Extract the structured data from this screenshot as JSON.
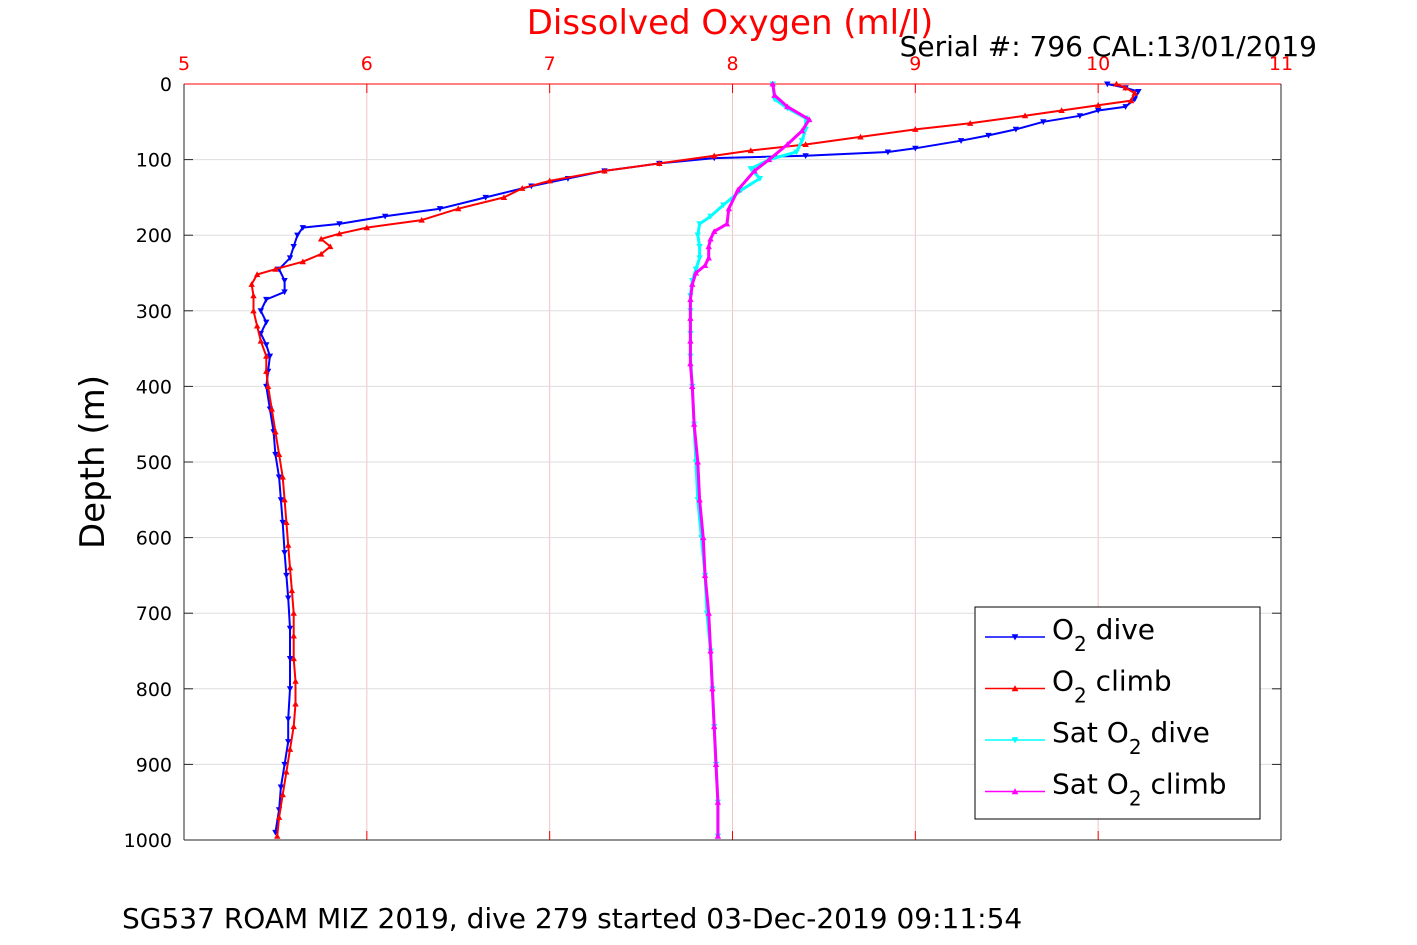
{
  "chart_data": {
    "type": "scatter",
    "title": "Dissolved Oxygen (ml/l)",
    "subtitle": "Serial #: 796  CAL:13/01/2019",
    "ylabel": "Depth (m)",
    "xlabel": "",
    "xlim": [
      5,
      11
    ],
    "ylim": [
      0,
      1000
    ],
    "y_reversed": true,
    "x_axis_position": "top",
    "x_ticks": [
      "5",
      "6",
      "7",
      "8",
      "9",
      "10",
      "11"
    ],
    "y_ticks": [
      "0",
      "100",
      "200",
      "300",
      "400",
      "500",
      "600",
      "700",
      "800",
      "900",
      "1000"
    ],
    "grid": true,
    "legend_position": "bottom-right",
    "footer": "SG537 ROAM MIZ 2019, dive 279 started 03-Dec-2019 09:11:54",
    "colors": {
      "o2_dive": "#0000ff",
      "o2_climb": "#ff0000",
      "sat_dive": "#00ffff",
      "sat_climb": "#ff00ff",
      "grid": "#dddddd",
      "x_axis": "#ff0000"
    },
    "series": [
      {
        "name": "O2 dive",
        "legend": {
          "base": "O",
          "sub": "2",
          "suffix": " dive",
          "prefix": ""
        },
        "color": "#0000ff",
        "marker": "triangle-down",
        "points": [
          [
            10.05,
            0
          ],
          [
            10.15,
            5
          ],
          [
            10.22,
            10
          ],
          [
            10.2,
            20
          ],
          [
            10.15,
            30
          ],
          [
            10.0,
            35
          ],
          [
            9.9,
            42
          ],
          [
            9.7,
            50
          ],
          [
            9.55,
            60
          ],
          [
            9.4,
            68
          ],
          [
            9.25,
            75
          ],
          [
            9.0,
            85
          ],
          [
            8.85,
            90
          ],
          [
            8.4,
            95
          ],
          [
            7.9,
            98
          ],
          [
            7.6,
            105
          ],
          [
            7.3,
            115
          ],
          [
            7.1,
            125
          ],
          [
            6.9,
            135
          ],
          [
            6.65,
            150
          ],
          [
            6.4,
            165
          ],
          [
            6.1,
            175
          ],
          [
            5.85,
            185
          ],
          [
            5.65,
            190
          ],
          [
            5.62,
            200
          ],
          [
            5.6,
            215
          ],
          [
            5.58,
            230
          ],
          [
            5.52,
            245
          ],
          [
            5.55,
            260
          ],
          [
            5.55,
            275
          ],
          [
            5.45,
            285
          ],
          [
            5.42,
            300
          ],
          [
            5.45,
            315
          ],
          [
            5.42,
            330
          ],
          [
            5.45,
            345
          ],
          [
            5.47,
            360
          ],
          [
            5.46,
            380
          ],
          [
            5.45,
            400
          ],
          [
            5.47,
            430
          ],
          [
            5.49,
            460
          ],
          [
            5.5,
            490
          ],
          [
            5.52,
            520
          ],
          [
            5.53,
            550
          ],
          [
            5.54,
            580
          ],
          [
            5.55,
            620
          ],
          [
            5.56,
            650
          ],
          [
            5.57,
            680
          ],
          [
            5.58,
            720
          ],
          [
            5.58,
            760
          ],
          [
            5.58,
            800
          ],
          [
            5.57,
            840
          ],
          [
            5.57,
            870
          ],
          [
            5.55,
            900
          ],
          [
            5.53,
            930
          ],
          [
            5.52,
            960
          ],
          [
            5.5,
            990
          ]
        ]
      },
      {
        "name": "O2 climb",
        "legend": {
          "base": "O",
          "sub": "2",
          "suffix": " climb",
          "prefix": ""
        },
        "color": "#ff0000",
        "marker": "triangle-up",
        "points": [
          [
            10.1,
            0
          ],
          [
            10.15,
            5
          ],
          [
            10.2,
            12
          ],
          [
            10.18,
            22
          ],
          [
            10.0,
            28
          ],
          [
            9.8,
            35
          ],
          [
            9.6,
            42
          ],
          [
            9.3,
            52
          ],
          [
            9.0,
            60
          ],
          [
            8.7,
            70
          ],
          [
            8.4,
            80
          ],
          [
            8.1,
            88
          ],
          [
            7.9,
            95
          ],
          [
            7.6,
            105
          ],
          [
            7.3,
            115
          ],
          [
            7.0,
            128
          ],
          [
            6.85,
            138
          ],
          [
            6.75,
            150
          ],
          [
            6.5,
            165
          ],
          [
            6.3,
            180
          ],
          [
            6.0,
            190
          ],
          [
            5.85,
            198
          ],
          [
            5.75,
            205
          ],
          [
            5.8,
            215
          ],
          [
            5.75,
            225
          ],
          [
            5.65,
            235
          ],
          [
            5.5,
            245
          ],
          [
            5.4,
            252
          ],
          [
            5.37,
            265
          ],
          [
            5.38,
            280
          ],
          [
            5.38,
            300
          ],
          [
            5.4,
            320
          ],
          [
            5.42,
            340
          ],
          [
            5.45,
            360
          ],
          [
            5.45,
            380
          ],
          [
            5.46,
            400
          ],
          [
            5.48,
            430
          ],
          [
            5.5,
            460
          ],
          [
            5.52,
            490
          ],
          [
            5.54,
            520
          ],
          [
            5.55,
            550
          ],
          [
            5.56,
            580
          ],
          [
            5.57,
            610
          ],
          [
            5.58,
            640
          ],
          [
            5.59,
            670
          ],
          [
            5.6,
            700
          ],
          [
            5.6,
            730
          ],
          [
            5.6,
            760
          ],
          [
            5.61,
            790
          ],
          [
            5.61,
            820
          ],
          [
            5.6,
            850
          ],
          [
            5.58,
            880
          ],
          [
            5.56,
            910
          ],
          [
            5.54,
            940
          ],
          [
            5.52,
            970
          ],
          [
            5.51,
            995
          ]
        ]
      },
      {
        "name": "Sat O2 dive",
        "legend": {
          "base": "O",
          "sub": "2",
          "suffix": " dive",
          "prefix": "Sat "
        },
        "color": "#00ffff",
        "marker": "triangle-down",
        "points": [
          [
            8.22,
            0
          ],
          [
            8.23,
            20
          ],
          [
            8.3,
            32
          ],
          [
            8.4,
            45
          ],
          [
            8.4,
            60
          ],
          [
            8.38,
            75
          ],
          [
            8.35,
            90
          ],
          [
            8.2,
            100
          ],
          [
            8.1,
            112
          ],
          [
            8.15,
            125
          ],
          [
            8.05,
            140
          ],
          [
            7.95,
            160
          ],
          [
            7.88,
            175
          ],
          [
            7.82,
            185
          ],
          [
            7.81,
            200
          ],
          [
            7.82,
            215
          ],
          [
            7.82,
            230
          ],
          [
            7.8,
            245
          ],
          [
            7.78,
            260
          ],
          [
            7.77,
            280
          ],
          [
            7.77,
            300
          ],
          [
            7.77,
            330
          ],
          [
            7.77,
            360
          ],
          [
            7.78,
            400
          ],
          [
            7.79,
            450
          ],
          [
            7.8,
            500
          ],
          [
            7.81,
            550
          ],
          [
            7.83,
            600
          ],
          [
            7.85,
            650
          ],
          [
            7.86,
            700
          ],
          [
            7.88,
            750
          ],
          [
            7.89,
            800
          ],
          [
            7.9,
            850
          ],
          [
            7.91,
            900
          ],
          [
            7.92,
            950
          ],
          [
            7.92,
            995
          ]
        ]
      },
      {
        "name": "Sat O2 climb",
        "legend": {
          "base": "O",
          "sub": "2",
          "suffix": " climb",
          "prefix": "Sat "
        },
        "color": "#ff00ff",
        "marker": "triangle-up",
        "points": [
          [
            8.22,
            0
          ],
          [
            8.23,
            15
          ],
          [
            8.3,
            30
          ],
          [
            8.42,
            47
          ],
          [
            8.38,
            62
          ],
          [
            8.3,
            80
          ],
          [
            8.2,
            100
          ],
          [
            8.12,
            115
          ],
          [
            8.03,
            140
          ],
          [
            7.98,
            165
          ],
          [
            7.97,
            185
          ],
          [
            7.9,
            195
          ],
          [
            7.88,
            205
          ],
          [
            7.87,
            215
          ],
          [
            7.87,
            230
          ],
          [
            7.85,
            240
          ],
          [
            7.8,
            250
          ],
          [
            7.78,
            265
          ],
          [
            7.77,
            285
          ],
          [
            7.77,
            310
          ],
          [
            7.77,
            340
          ],
          [
            7.77,
            370
          ],
          [
            7.78,
            400
          ],
          [
            7.79,
            450
          ],
          [
            7.81,
            500
          ],
          [
            7.82,
            550
          ],
          [
            7.84,
            600
          ],
          [
            7.85,
            650
          ],
          [
            7.87,
            700
          ],
          [
            7.88,
            750
          ],
          [
            7.89,
            800
          ],
          [
            7.9,
            850
          ],
          [
            7.91,
            900
          ],
          [
            7.92,
            950
          ],
          [
            7.92,
            995
          ]
        ]
      }
    ]
  }
}
